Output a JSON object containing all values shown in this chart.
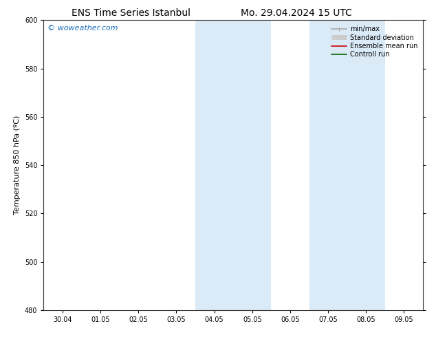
{
  "title_left": "ENS Time Series Istanbul",
  "title_right": "Mo. 29.04.2024 15 UTC",
  "ylabel": "Temperature 850 hPa (ºC)",
  "watermark": "© woweather.com",
  "watermark_color": "#1a6fba",
  "ylim": [
    480,
    600
  ],
  "yticks": [
    480,
    500,
    520,
    540,
    560,
    580,
    600
  ],
  "xtick_labels": [
    "30.04",
    "01.05",
    "02.05",
    "03.05",
    "04.05",
    "05.05",
    "06.05",
    "07.05",
    "08.05",
    "09.05"
  ],
  "n_xticks": 10,
  "shaded_regions": [
    {
      "xmin": 4,
      "xmax": 5,
      "color": "#daeaf7"
    },
    {
      "xmin": 5,
      "xmax": 6,
      "color": "#daeaf7"
    },
    {
      "xmin": 7,
      "xmax": 8,
      "color": "#daeaf7"
    },
    {
      "xmin": 8,
      "xmax": 9,
      "color": "#daeaf7"
    }
  ],
  "legend_items": [
    {
      "label": "min/max",
      "color": "#aaaaaa",
      "lw": 1.2
    },
    {
      "label": "Standard deviation",
      "color": "#cccccc",
      "lw": 5
    },
    {
      "label": "Ensemble mean run",
      "color": "#cc0000",
      "lw": 1.2
    },
    {
      "label": "Controll run",
      "color": "#006600",
      "lw": 1.2
    }
  ],
  "bg_color": "#ffffff",
  "plot_bg_color": "#ffffff",
  "title_fontsize": 10,
  "axis_fontsize": 8,
  "tick_fontsize": 7,
  "legend_fontsize": 7,
  "watermark_fontsize": 8
}
